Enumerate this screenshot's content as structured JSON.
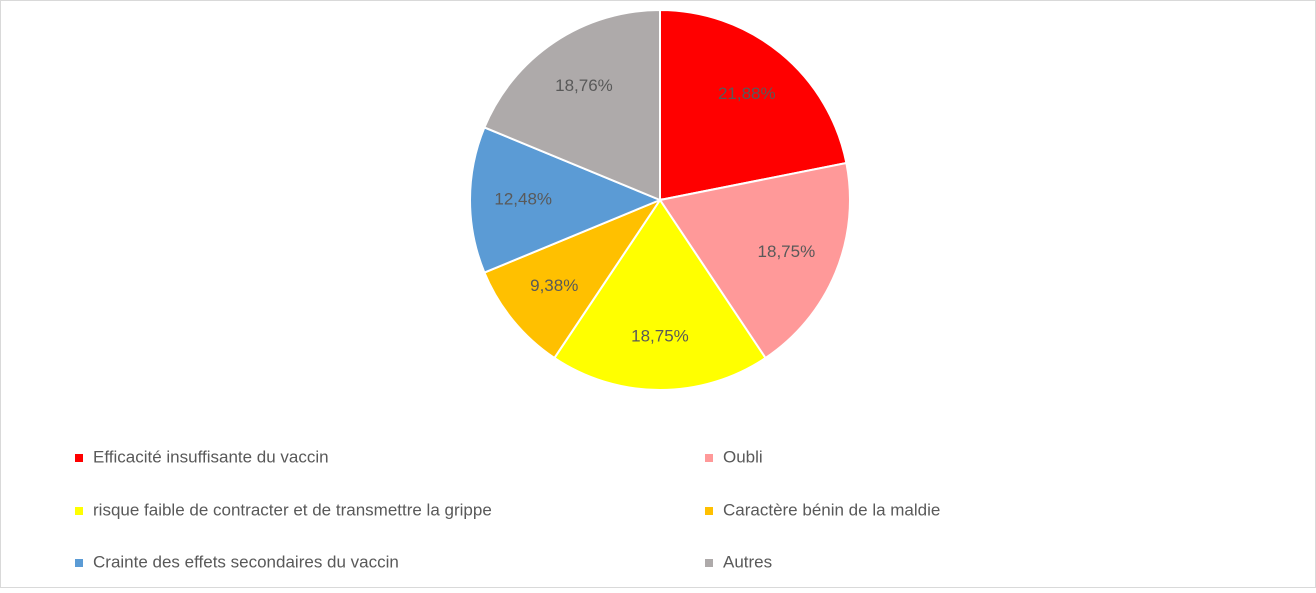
{
  "chart_data": {
    "type": "pie",
    "categories": [
      "Efficacité insuffisante du vaccin",
      "Oubli",
      "risque faible de contracter et de transmettre la grippe",
      "Caractère bénin de la maldie",
      "Crainte des effets secondaires du vaccin",
      "Autres"
    ],
    "values": [
      21.88,
      18.75,
      18.75,
      9.38,
      12.48,
      18.76
    ],
    "value_labels": [
      "21,88%",
      "18,75%",
      "18,75%",
      "9,38%",
      "12,48%",
      "18,76%"
    ],
    "colors": [
      "#ff0000",
      "#ff9999",
      "#ffff00",
      "#ffc000",
      "#5b9bd5",
      "#aeaaaa"
    ],
    "legend": "bottom"
  }
}
